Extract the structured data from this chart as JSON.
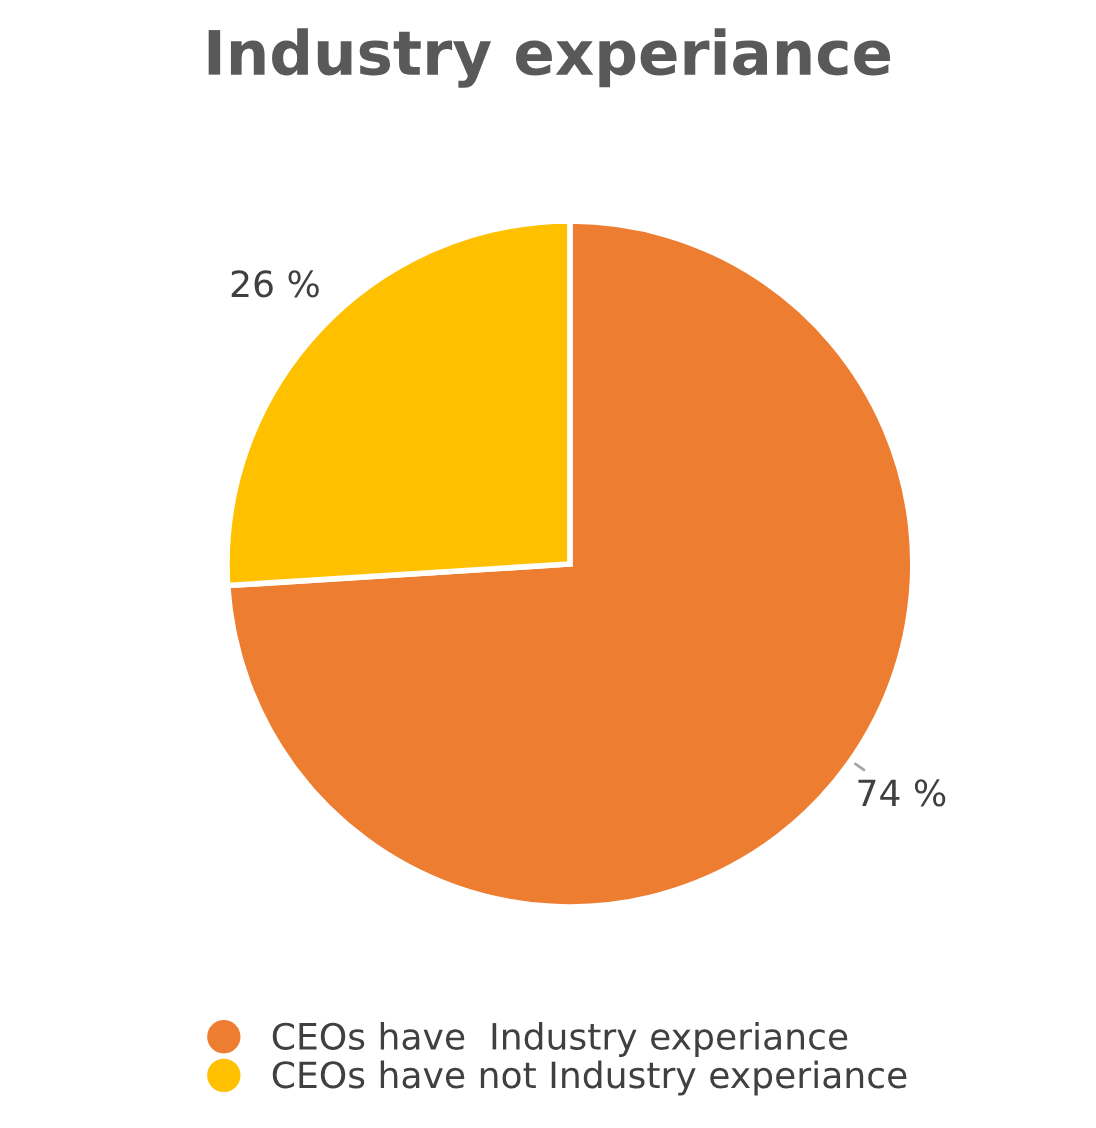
{
  "chart_data": {
    "type": "pie",
    "title": "Industry experiance",
    "categories": [
      "CEOs have  Industry experiance",
      "CEOs have not Industry experiance"
    ],
    "values": [
      74,
      26
    ],
    "colors": [
      "#ed7d31",
      "#ffc000"
    ],
    "value_labels": [
      "74 %",
      "26 %"
    ],
    "legend": "bottom"
  }
}
